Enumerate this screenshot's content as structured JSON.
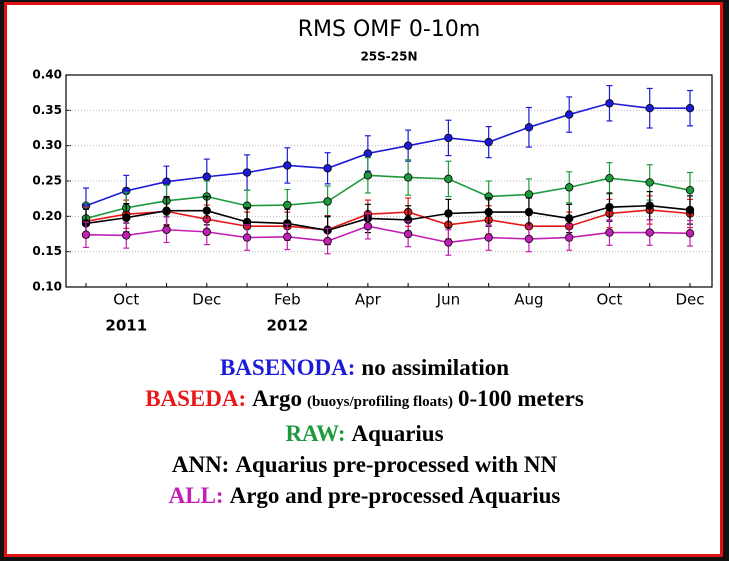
{
  "chart_data": {
    "type": "line",
    "title": "RMS OMF 0-10m",
    "subtitle": "25S-25N",
    "categories": [
      null,
      "Oct",
      null,
      "Dec",
      null,
      "Feb",
      null,
      "Apr",
      null,
      "Jun",
      null,
      "Aug",
      null,
      "Oct",
      null,
      "Dec"
    ],
    "category_years": [
      null,
      "2011",
      null,
      null,
      null,
      "2012",
      null,
      null,
      null,
      null,
      null,
      null,
      null,
      null,
      null,
      null
    ],
    "ylim": [
      0.1,
      0.4
    ],
    "yticks": [
      {
        "value": 0.1,
        "label": "0.10"
      },
      {
        "value": 0.15,
        "label": "0.15"
      },
      {
        "value": 0.2,
        "label": "0.20"
      },
      {
        "value": 0.25,
        "label": "0.25"
      },
      {
        "value": 0.3,
        "label": "0.30"
      },
      {
        "value": 0.35,
        "label": "0.35"
      },
      {
        "value": 0.4,
        "label": "0.40"
      }
    ],
    "grid": true,
    "series": [
      {
        "name": "BASENODA:",
        "description": "no assimilation",
        "color": "#1c1cd8",
        "values": [
          0.215,
          0.236,
          0.249,
          0.256,
          0.262,
          0.272,
          0.268,
          0.289,
          0.3,
          0.311,
          0.305,
          0.326,
          0.344,
          0.36,
          0.353,
          0.353
        ],
        "errors": [
          0.025,
          0.022,
          0.022,
          0.025,
          0.025,
          0.025,
          0.022,
          0.025,
          0.022,
          0.025,
          0.022,
          0.028,
          0.025,
          0.025,
          0.028,
          0.025
        ]
      },
      {
        "name": "BASEDA:",
        "description": "Argo",
        "note": "(buoys/profiling floats)",
        "description_end": "0-100 meters",
        "color": "#e8181a",
        "values": [
          0.193,
          0.203,
          0.207,
          0.196,
          0.186,
          0.186,
          0.181,
          0.203,
          0.206,
          0.188,
          0.195,
          0.186,
          0.186,
          0.204,
          0.209,
          0.204
        ],
        "errors": [
          0.02,
          0.02,
          0.02,
          0.02,
          0.02,
          0.02,
          0.02,
          0.02,
          0.02,
          0.02,
          0.02,
          0.02,
          0.02,
          0.02,
          0.02,
          0.02
        ]
      },
      {
        "name": "RAW:",
        "description": "Aquarius",
        "color": "#1e9a3c",
        "values": [
          0.197,
          0.212,
          0.222,
          0.228,
          0.215,
          0.216,
          0.221,
          0.258,
          0.255,
          0.253,
          0.228,
          0.231,
          0.241,
          0.254,
          0.248,
          0.237
        ],
        "errors": [
          0.022,
          0.022,
          0.022,
          0.022,
          0.022,
          0.022,
          0.022,
          0.025,
          0.025,
          0.025,
          0.022,
          0.022,
          0.022,
          0.022,
          0.025,
          0.025
        ]
      },
      {
        "name": "ANN:",
        "description": "Aquarius pre-processed with NN",
        "color": "#000000",
        "values": [
          0.19,
          0.198,
          0.208,
          0.208,
          0.192,
          0.19,
          0.18,
          0.197,
          0.195,
          0.204,
          0.206,
          0.206,
          0.197,
          0.213,
          0.215,
          0.209
        ],
        "errors": [
          0.02,
          0.02,
          0.02,
          0.02,
          0.02,
          0.02,
          0.02,
          0.02,
          0.02,
          0.02,
          0.02,
          0.02,
          0.02,
          0.02,
          0.02,
          0.02
        ]
      },
      {
        "name": "ALL:",
        "description": "Argo and pre-processed Aquarius",
        "color": "#c21fb4",
        "values": [
          0.174,
          0.173,
          0.181,
          0.178,
          0.17,
          0.171,
          0.165,
          0.186,
          0.175,
          0.163,
          0.17,
          0.168,
          0.17,
          0.177,
          0.177,
          0.176
        ],
        "errors": [
          0.018,
          0.018,
          0.018,
          0.018,
          0.018,
          0.018,
          0.018,
          0.018,
          0.018,
          0.018,
          0.018,
          0.018,
          0.018,
          0.018,
          0.018,
          0.018
        ]
      }
    ]
  }
}
